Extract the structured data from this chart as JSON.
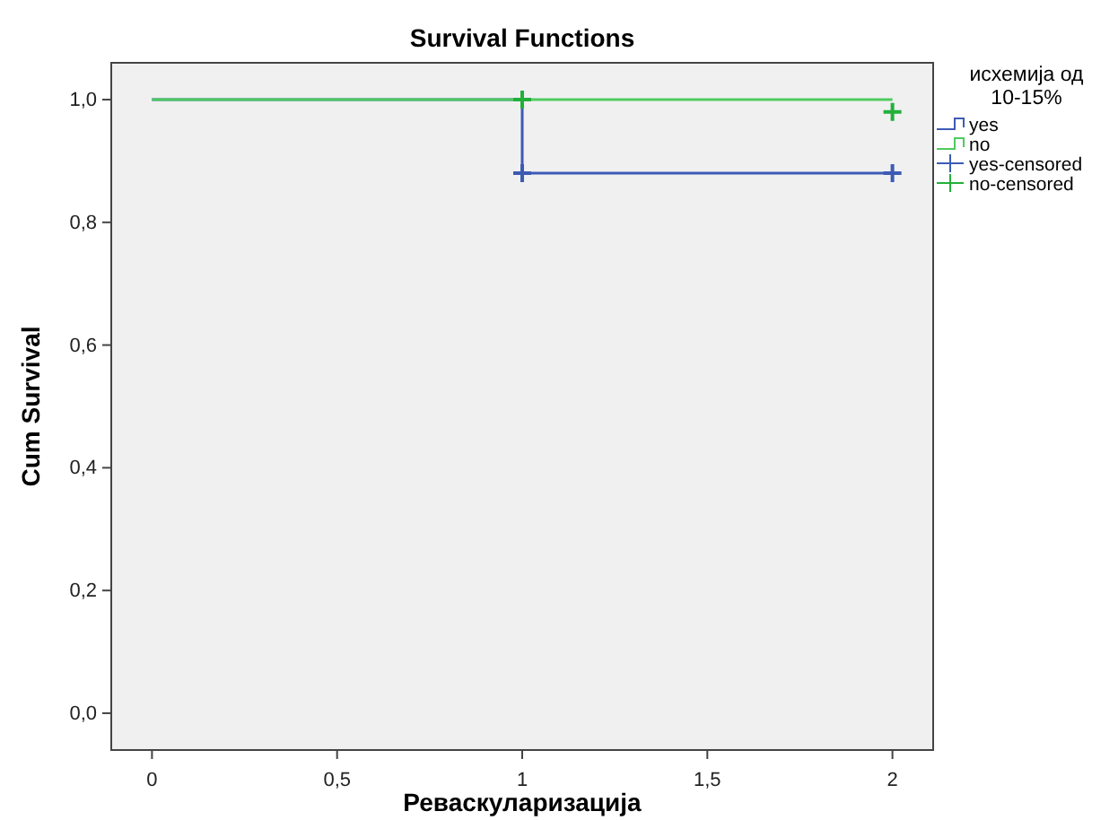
{
  "chart_data": {
    "type": "step",
    "title": "Survival Functions",
    "xlabel": "Реваскуларизација",
    "ylabel": "Cum Survival",
    "legend_title": "исхемија од 10-15%",
    "xlim": [
      -0.11,
      2.11
    ],
    "ylim": [
      -0.06,
      1.06
    ],
    "xticks": [
      0,
      {
        "value": 0.5,
        "label": "0,5"
      },
      1,
      {
        "value": 1.5,
        "label": "1,5"
      },
      2
    ],
    "yticks": [
      {
        "value": 0,
        "label": "0,0"
      },
      {
        "value": 0.2,
        "label": "0,2"
      },
      {
        "value": 0.4,
        "label": "0,4"
      },
      {
        "value": 0.6,
        "label": "0,6"
      },
      {
        "value": 0.8,
        "label": "0,8"
      },
      {
        "value": 1,
        "label": "1,0"
      }
    ],
    "grid": false,
    "legend": "right",
    "series": [
      {
        "name": "yes",
        "color": "#3d5bb5",
        "x": [
          0,
          1,
          2
        ],
        "values": [
          1,
          0.88,
          0.88
        ]
      },
      {
        "name": "no",
        "color": "#4ecb5e",
        "x": [
          0,
          1,
          2
        ],
        "values": [
          1,
          1,
          1
        ]
      },
      {
        "name": "yes-censored",
        "type": "scatter",
        "marker": "cross",
        "color": "#3d5bb5",
        "x": [
          1,
          2
        ],
        "values": [
          0.88,
          0.88
        ]
      },
      {
        "name": "no-censored",
        "type": "scatter",
        "marker": "cross",
        "color": "#22b03a",
        "x": [
          1,
          2
        ],
        "values": [
          1,
          0.98
        ]
      }
    ]
  }
}
